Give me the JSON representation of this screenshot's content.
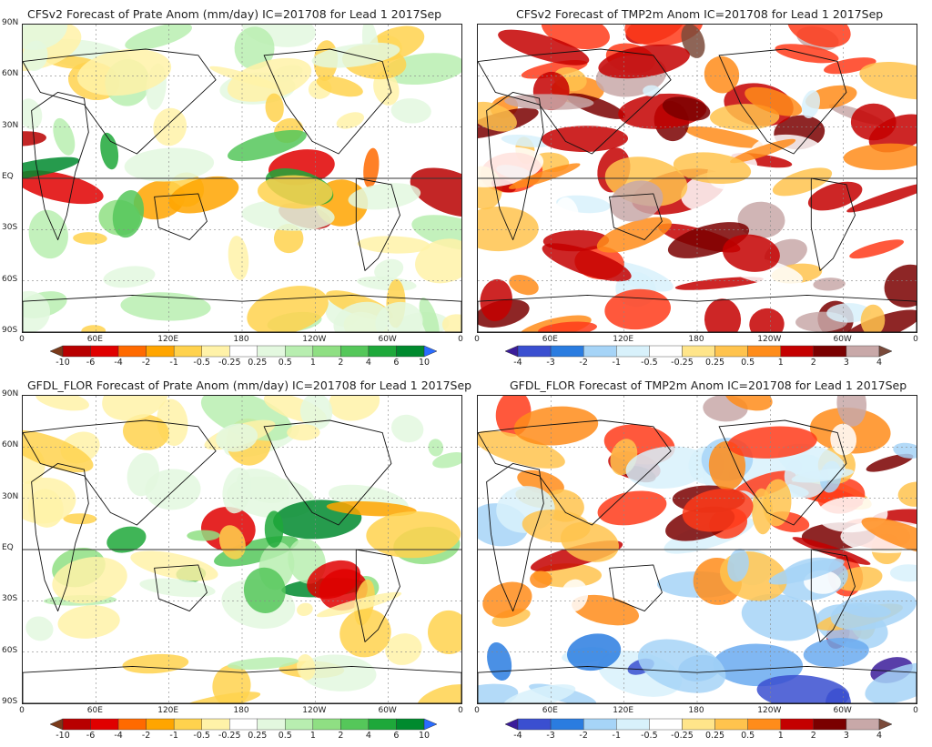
{
  "panels": [
    {
      "id": "cfs-prate",
      "title": "CFSv2 Forecast of Prate Anom (mm/day) IC=201708 for Lead 1 2017Sep",
      "variable": "prate",
      "lat_labels": [
        "90N",
        "60N",
        "30N",
        "EQ",
        "30S",
        "60S",
        "90S"
      ],
      "lon_labels": [
        "0",
        "60E",
        "120E",
        "180",
        "120W",
        "60W",
        "0"
      ],
      "colorbar_labels": [
        "-10",
        "-6",
        "-4",
        "-2",
        "-1",
        "-0.5",
        "-0.25",
        "0.25",
        "0.5",
        "1",
        "2",
        "4",
        "6",
        "10"
      ]
    },
    {
      "id": "cfs-tmp2m",
      "title": "CFSv2 Forecast of TMP2m Anom IC=201708 for Lead 1 2017Sep",
      "variable": "tmp2m",
      "lat_labels": [],
      "lon_labels": [
        "0",
        "60E",
        "120E",
        "180",
        "120W",
        "60W",
        "0"
      ],
      "colorbar_labels": [
        "-4",
        "-3",
        "-2",
        "-1",
        "-0.5",
        "-0.25",
        "0.25",
        "0.5",
        "1",
        "2",
        "3",
        "4"
      ]
    },
    {
      "id": "gfdl-prate",
      "title": "GFDL_FLOR Forecast of Prate Anom (mm/day) IC=201708 for Lead 1 2017Sep",
      "variable": "prate",
      "lat_labels": [
        "90N",
        "60N",
        "30N",
        "EQ",
        "30S",
        "60S",
        "90S"
      ],
      "lon_labels": [
        "0",
        "60E",
        "120E",
        "180",
        "120W",
        "60W",
        "0"
      ],
      "colorbar_labels": [
        "-10",
        "-6",
        "-4",
        "-2",
        "-1",
        "-0.5",
        "-0.25",
        "0.25",
        "0.5",
        "1",
        "2",
        "4",
        "6",
        "10"
      ]
    },
    {
      "id": "gfdl-tmp2m",
      "title": "GFDL_FLOR Forecast of TMP2m Anom IC=201708 for Lead 1 2017Sep",
      "variable": "tmp2m",
      "lat_labels": [],
      "lon_labels": [
        "0",
        "60E",
        "120E",
        "180",
        "120W",
        "60W",
        "0"
      ],
      "colorbar_labels": [
        "-4",
        "-3",
        "-2",
        "-1",
        "-0.5",
        "-0.25",
        "0.25",
        "0.5",
        "1",
        "2",
        "3",
        "4"
      ]
    }
  ],
  "palettes": {
    "prate": [
      "#7a3a1a",
      "#b80000",
      "#e00000",
      "#ff6a00",
      "#ffa500",
      "#ffd24d",
      "#fff2a8",
      "#ffffff",
      "#e3f8df",
      "#b8eeb0",
      "#8fdf83",
      "#55c75a",
      "#1ea83a",
      "#008a2e",
      "#2a6cff"
    ],
    "tmp2m": [
      "#3b1c9a",
      "#3a4fd0",
      "#2a7ce0",
      "#6aaaf0",
      "#a6d4f7",
      "#d8f1fb",
      "#ffffff",
      "#ffe58a",
      "#ffc34d",
      "#ff8c1a",
      "#ff3b1a",
      "#c40000",
      "#7a0000",
      "#c8a8a8",
      "#7a4a3a"
    ]
  }
}
